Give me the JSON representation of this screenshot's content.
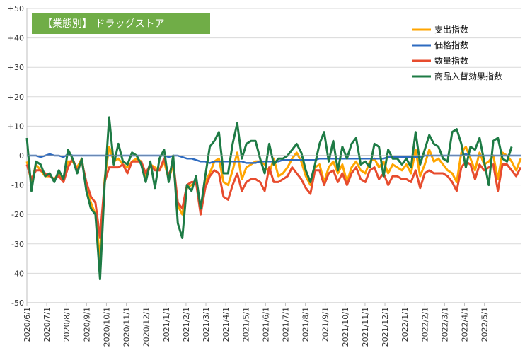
{
  "chart_data": {
    "type": "line",
    "title": "【業態別】 ドラッグストア",
    "title_bg_color": "#70ad47",
    "ylim": [
      -50,
      50
    ],
    "y_ticks": [
      "+50",
      "+40",
      "+30",
      "+20",
      "+10",
      "0",
      "-10",
      "-20",
      "-30",
      "-40",
      "-50"
    ],
    "x_ticks": [
      "2020/6/1",
      "2020/7/1",
      "2020/8/1",
      "2020/9/1",
      "2020/10/1",
      "2020/11/1",
      "2020/12/1",
      "2021/1/1",
      "2021/2/1",
      "2021/3/1",
      "2021/4/1",
      "2021/5/1",
      "2021/6/1",
      "2021/7/1",
      "2021/8/1",
      "2021/9/1",
      "2021/10/1",
      "2021/11/1",
      "2021/12/1",
      "2022/1/1",
      "2022/2/1",
      "2022/3/1",
      "2022/4/1",
      "2022/5/1"
    ],
    "grid": true,
    "legend_position": "top-right",
    "points_per_month": 4.35,
    "series": [
      {
        "name": "支出指数",
        "color": "#ffa500",
        "values": [
          -2,
          -9,
          -3,
          -5,
          -7,
          -7,
          -8,
          -6,
          -8,
          -2,
          -2,
          -4,
          -1,
          -11,
          -16,
          -20,
          -35,
          -8,
          3,
          -2,
          -1,
          -3,
          -4,
          -2,
          -1,
          -2,
          -8,
          -3,
          -4,
          -5,
          -2,
          -8,
          -3,
          -17,
          -20,
          -11,
          -10,
          -9,
          -19,
          -9,
          -6,
          -2,
          -1,
          -9,
          -10,
          -5,
          1,
          -8,
          -4,
          -3,
          -2,
          -2,
          -3,
          -6,
          -1,
          -7,
          -6,
          -4,
          -1,
          1,
          -2,
          -7,
          -10,
          -4,
          -3,
          -9,
          -4,
          -2,
          -6,
          -3,
          -9,
          -4,
          -2,
          -5,
          -6,
          -2,
          -1,
          -4,
          -2,
          -6,
          -3,
          -4,
          -5,
          -3,
          -6,
          2,
          -7,
          -3,
          2,
          -2,
          -1,
          -3,
          -5,
          -6,
          -9,
          1,
          3,
          -1,
          -5,
          1,
          -3,
          -2,
          0,
          -8,
          1,
          0,
          -2,
          -5,
          -1
        ]
      },
      {
        "name": "価格指数",
        "color": "#2e6bc0",
        "values": [
          0,
          0,
          0,
          -0.5,
          0,
          0.5,
          0,
          0,
          -0.5,
          0.5,
          0,
          0,
          0,
          0,
          0,
          0,
          0,
          0,
          0,
          0,
          0,
          0,
          0,
          0,
          0,
          0,
          0,
          0,
          0,
          0,
          0,
          -0.5,
          0,
          0,
          -0.5,
          -1,
          -1,
          -1.5,
          -2,
          -2,
          -2.5,
          -2,
          -2,
          -2,
          -2,
          -2,
          -2,
          -2,
          -2.5,
          -2.5,
          -2.5,
          -2,
          -2,
          -2,
          -2,
          -2,
          -1.5,
          -1.5,
          -1.5,
          -1.5,
          -1.5,
          -1.5,
          -1.5,
          -1.5,
          -1,
          -1,
          -1,
          -1,
          -1,
          -1,
          -1,
          -1,
          -1,
          -1,
          -1,
          -1,
          -1,
          -1,
          -1,
          -0.5,
          -0.5,
          -0.5,
          -0.5,
          -0.5,
          -0.5,
          -0.5,
          -0.5,
          0,
          0,
          0,
          0,
          0,
          0,
          0,
          0,
          0,
          0.5,
          0,
          0,
          0,
          0,
          0,
          0,
          0,
          0,
          0,
          0,
          0,
          0
        ]
      },
      {
        "name": "数量指数",
        "color": "#e74c2e",
        "values": [
          -3,
          -8,
          -5,
          -5,
          -6,
          -7,
          -8,
          -7,
          -9,
          -4,
          -1,
          -5,
          -2,
          -9,
          -14,
          -16,
          -28,
          -9,
          -4,
          -4,
          -4,
          -3,
          -6,
          -2,
          -2,
          -2,
          -6,
          -3,
          -5,
          -5,
          -1,
          -7,
          -2,
          -16,
          -18,
          -10,
          -9,
          -9,
          -20,
          -11,
          -7,
          -5,
          -6,
          -14,
          -15,
          -10,
          -6,
          -12,
          -9,
          -8,
          -8,
          -9,
          -12,
          -4,
          -9,
          -9,
          -8,
          -7,
          -4,
          -6,
          -8,
          -11,
          -13,
          -5,
          -5,
          -10,
          -6,
          -5,
          -9,
          -6,
          -10,
          -6,
          -4,
          -8,
          -9,
          -5,
          -4,
          -8,
          -6,
          -10,
          -7,
          -7,
          -8,
          -8,
          -9,
          -5,
          -11,
          -6,
          -5,
          -6,
          -6,
          -6,
          -7,
          -9,
          -12,
          -4,
          -2,
          -3,
          -8,
          -3,
          -5,
          -4,
          -3,
          -12,
          -3,
          -3,
          -5,
          -7,
          -4
        ]
      },
      {
        "name": "商品入替効果指数",
        "color": "#1e7b45",
        "values": [
          6,
          -12,
          -2,
          -3,
          -7,
          -6,
          -9,
          -5,
          -8,
          2,
          -1,
          -6,
          -1,
          -12,
          -18,
          -20,
          -42,
          -10,
          13,
          -3,
          4,
          -2,
          -3,
          1,
          0,
          -3,
          -9,
          -2,
          -11,
          -1,
          2,
          -9,
          0,
          -23,
          -28,
          -10,
          -12,
          -7,
          -18,
          -7,
          3,
          5,
          8,
          -6,
          -6,
          4,
          11,
          -1,
          4,
          5,
          5,
          -1,
          -6,
          4,
          -3,
          -1,
          -1,
          0,
          2,
          4,
          1,
          -5,
          -9,
          -3,
          4,
          8,
          -2,
          5,
          -5,
          3,
          -1,
          4,
          6,
          -3,
          -2,
          -4,
          4,
          3,
          -7,
          2,
          -1,
          -1,
          -3,
          -1,
          -4,
          8,
          -3,
          2,
          7,
          4,
          3,
          -1,
          -2,
          8,
          9,
          4,
          -4,
          3,
          2,
          6,
          -2,
          -10,
          5,
          6,
          -1,
          -2,
          3
        ]
      }
    ]
  }
}
